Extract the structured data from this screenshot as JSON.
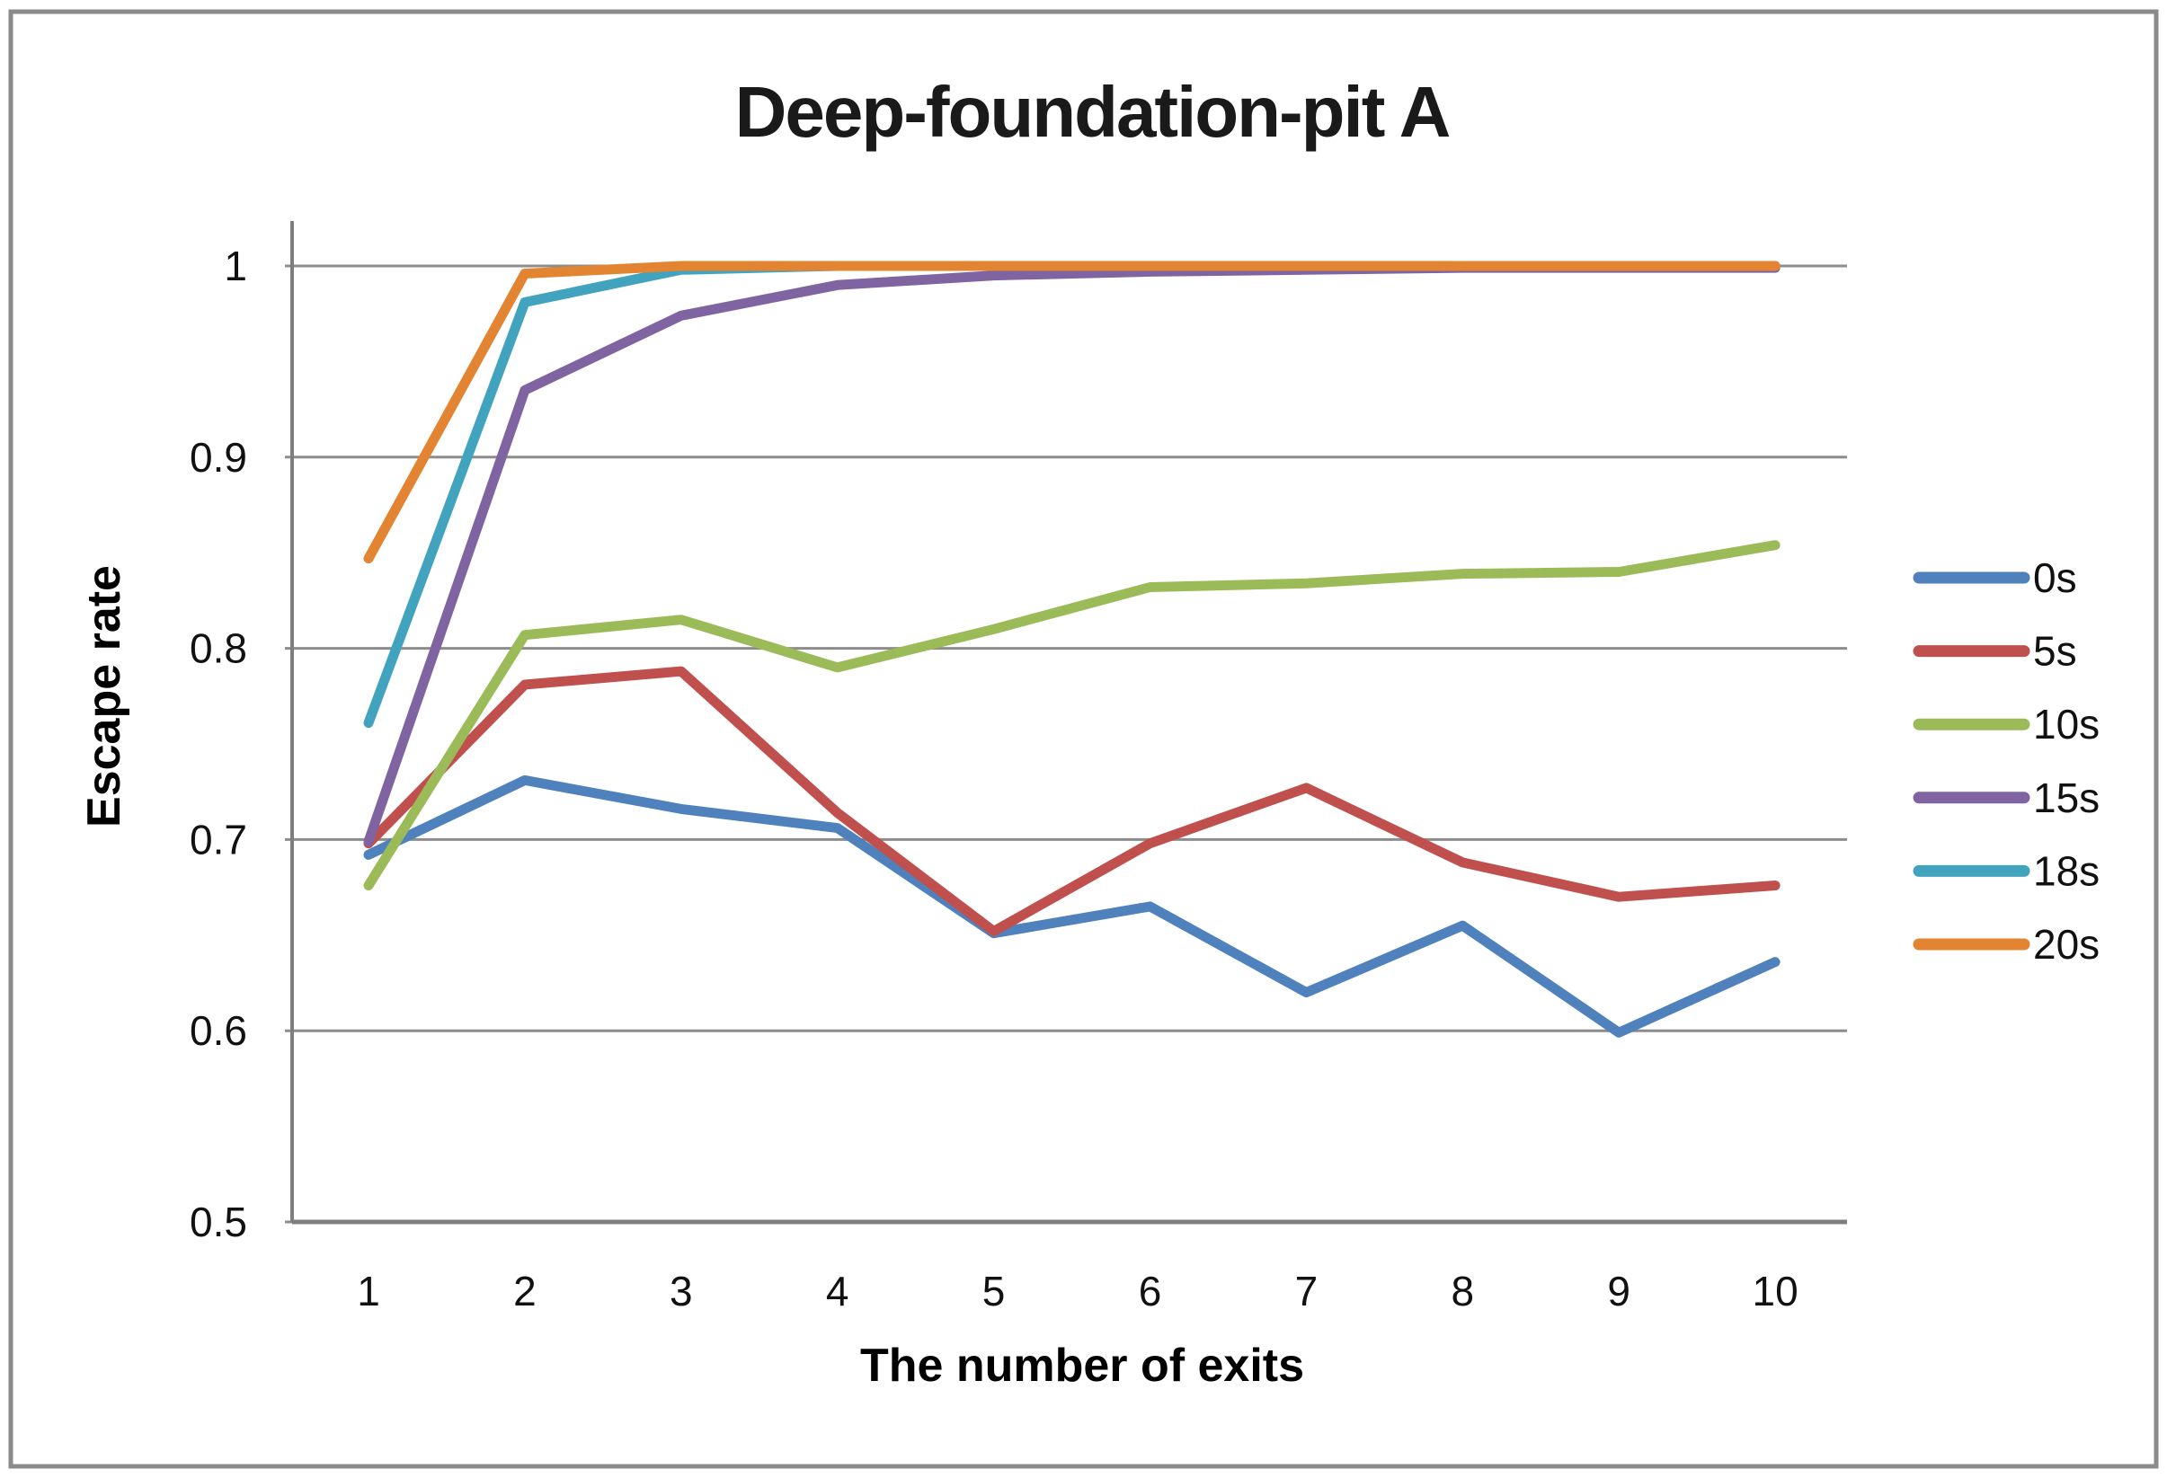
{
  "frame": {
    "background": "#FFFFFF",
    "border_color": "#8A8A8A",
    "gridline_color": "#8C8C8C",
    "axis_color": "#7E7E7E",
    "text_color": "#111111"
  },
  "chart_data": {
    "type": "line",
    "title": "Deep-foundation-pit A",
    "xlabel": "The number of exits",
    "ylabel": "Escape rate",
    "x": [
      1,
      2,
      3,
      4,
      5,
      6,
      7,
      8,
      9,
      10
    ],
    "x_tick_labels": [
      "1",
      "2",
      "3",
      "4",
      "5",
      "6",
      "7",
      "8",
      "9",
      "10"
    ],
    "y_ticks": [
      0.5,
      0.6,
      0.7,
      0.8,
      0.9,
      1
    ],
    "y_tick_labels": [
      "0.5",
      "0.6",
      "0.7",
      "0.8",
      "0.9",
      "1"
    ],
    "ylim": [
      0.5,
      1.025
    ],
    "grid": "horizontal-only",
    "legend_position": "right-middle",
    "series": [
      {
        "name": "0s",
        "color": "#4F81BD",
        "values": [
          0.692,
          0.731,
          0.716,
          0.706,
          0.651,
          0.665,
          0.62,
          0.655,
          0.599,
          0.636
        ]
      },
      {
        "name": "5s",
        "color": "#C0504D",
        "values": [
          0.698,
          0.781,
          0.788,
          0.714,
          0.652,
          0.698,
          0.727,
          0.688,
          0.67,
          0.676
        ]
      },
      {
        "name": "10s",
        "color": "#9BBB59",
        "values": [
          0.676,
          0.807,
          0.815,
          0.79,
          0.81,
          0.832,
          0.834,
          0.839,
          0.84,
          0.854
        ]
      },
      {
        "name": "15s",
        "color": "#8064A2",
        "values": [
          0.699,
          0.935,
          0.974,
          0.99,
          0.995,
          0.997,
          0.998,
          0.999,
          0.999,
          0.999
        ]
      },
      {
        "name": "18s",
        "color": "#42A3BF",
        "values": [
          0.761,
          0.981,
          0.998,
          1.0,
          1.0,
          1.0,
          1.0,
          1.0,
          1.0,
          1.0
        ]
      },
      {
        "name": "20s",
        "color": "#E28432",
        "values": [
          0.847,
          0.996,
          1.0,
          1.0,
          1.0,
          1.0,
          1.0,
          1.0,
          1.0,
          1.0
        ]
      }
    ]
  }
}
